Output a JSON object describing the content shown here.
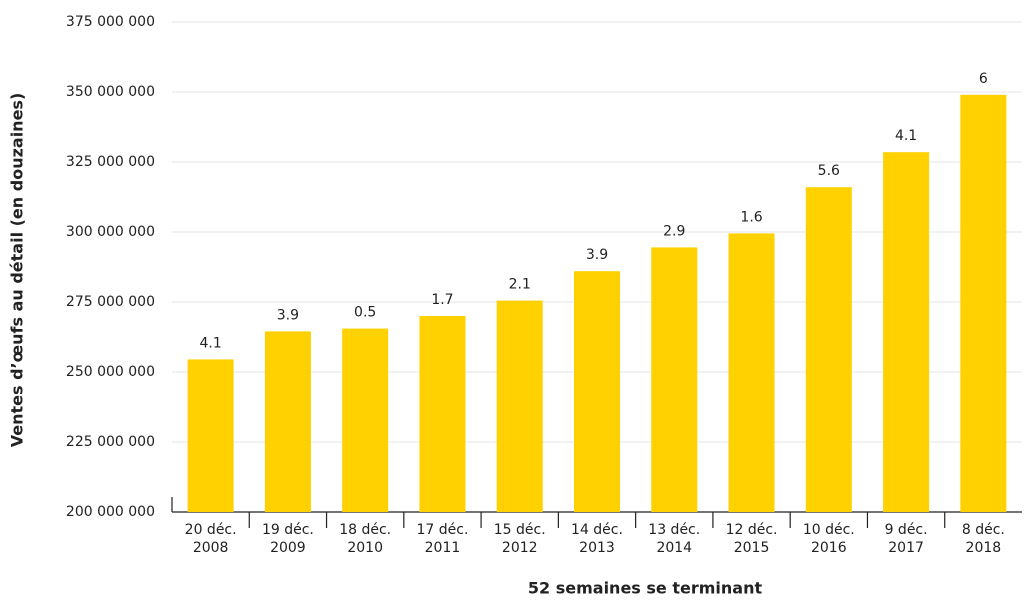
{
  "chart_data": {
    "type": "bar",
    "xlabel": "52 semaines se terminant",
    "ylabel": "Ventes d’œufs au détail (en douzaines)",
    "categories": [
      [
        "20 déc.",
        "2008"
      ],
      [
        "19 déc.",
        "2009"
      ],
      [
        "18 déc.",
        "2010"
      ],
      [
        "17 déc.",
        "2011"
      ],
      [
        "15 déc.",
        "2012"
      ],
      [
        "14 déc.",
        "2013"
      ],
      [
        "13 déc.",
        "2014"
      ],
      [
        "12 déc.",
        "2015"
      ],
      [
        "10 déc.",
        "2016"
      ],
      [
        "9 déc.",
        "2017"
      ],
      [
        "8 déc.",
        "2018"
      ]
    ],
    "values": [
      254500000,
      264500000,
      265500000,
      270000000,
      275500000,
      286000000,
      294500000,
      299500000,
      316000000,
      328500000,
      349000000
    ],
    "annotations": [
      4.1,
      3.9,
      0.5,
      1.7,
      2.1,
      3.9,
      2.9,
      1.6,
      5.6,
      4.1,
      6
    ],
    "color": "#ffd100",
    "ylim": [
      200000000,
      375000000
    ],
    "yticks": [
      {
        "value": 200000000,
        "label": "200 000 000"
      },
      {
        "value": 225000000,
        "label": "225 000 000"
      },
      {
        "value": 250000000,
        "label": "250 000 000"
      },
      {
        "value": 275000000,
        "label": "275 000 000"
      },
      {
        "value": 300000000,
        "label": "300 000 000"
      },
      {
        "value": 325000000,
        "label": "325 000 000"
      },
      {
        "value": 350000000,
        "label": "350 000 000"
      },
      {
        "value": 375000000,
        "label": "375 000 000"
      }
    ],
    "grid": true
  }
}
